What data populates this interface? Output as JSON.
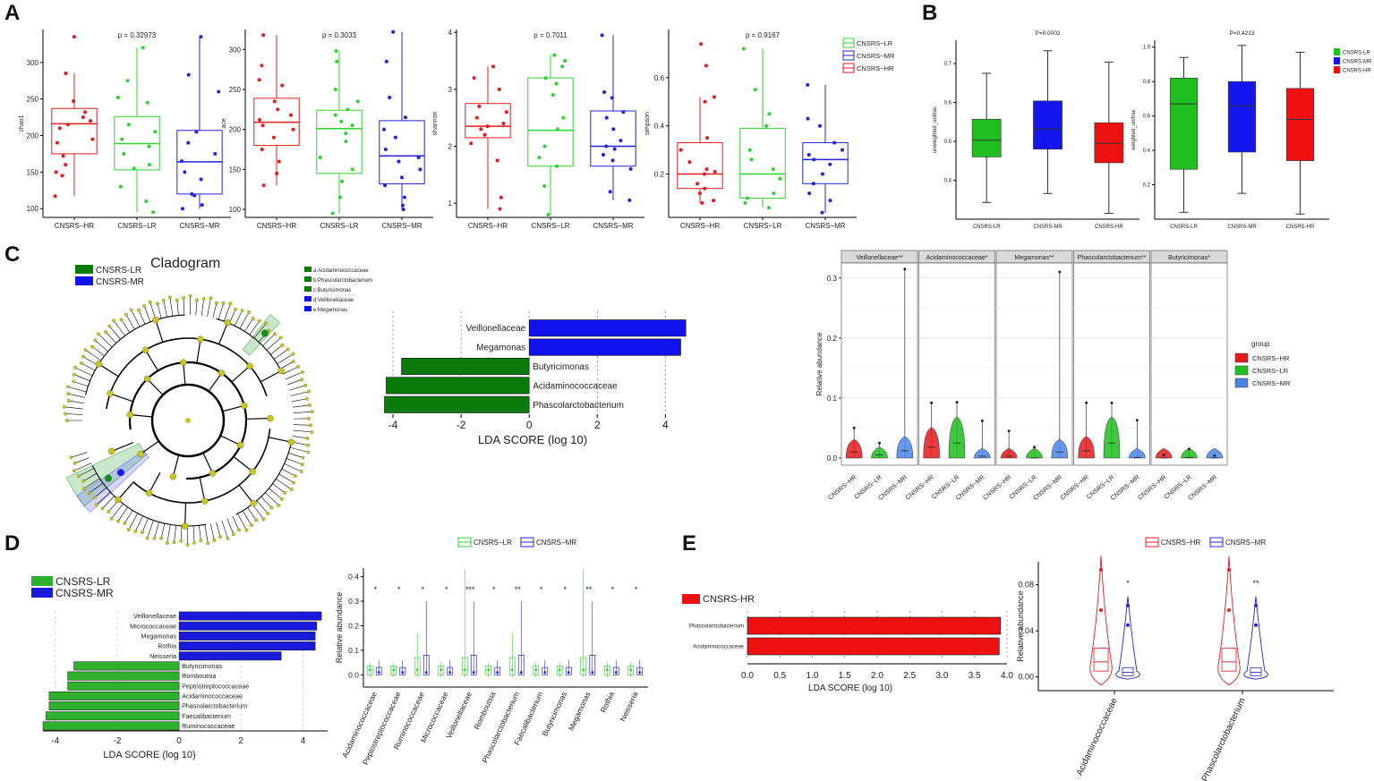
{
  "panel_letters": {
    "A": "A",
    "B": "B",
    "C": "C",
    "D": "D",
    "E": "E"
  },
  "colors": {
    "hr": "#e41a1c",
    "lr": "#2ed12e",
    "mr": "#2222dd",
    "lr_solid": "#1fbf1f",
    "mr_solid": "#1515ee",
    "hr_solid": "#ee1111",
    "lda_green": "#0a7a0a",
    "lda_blue": "#1212ee",
    "lda_green_light": "#2db02d",
    "lda_blue_dark": "#1a1add",
    "yellow_node": "#c8c819"
  },
  "chart_data": [
    {
      "id": "A1",
      "type": "box",
      "title": "p = 0.32973",
      "ylabel": "chao1",
      "ylim": [
        88,
        345
      ],
      "yticks": [
        100,
        150,
        200,
        250,
        300
      ],
      "groups": [
        {
          "name": "CNSRS−HR",
          "color": "#e41a1c",
          "q1": 175,
          "median": 216,
          "q3": 237,
          "wlo": 117,
          "whi": 285,
          "points": [
            117,
            145,
            150,
            160,
            172,
            190,
            195,
            210,
            215,
            220,
            225,
            232,
            247,
            285,
            335
          ]
        },
        {
          "name": "CNSRS−LR",
          "color": "#2ed12e",
          "q1": 153,
          "median": 189,
          "q3": 226,
          "wlo": 95,
          "whi": 320,
          "points": [
            95,
            110,
            130,
            155,
            160,
            175,
            185,
            195,
            205,
            215,
            245,
            252,
            275,
            320
          ]
        },
        {
          "name": "CNSRS−MR",
          "color": "#2222dd",
          "q1": 120,
          "median": 164,
          "q3": 207,
          "wlo": 100,
          "whi": 335,
          "points": [
            100,
            105,
            118,
            120,
            140,
            150,
            165,
            175,
            190,
            205,
            260,
            283,
            335
          ]
        }
      ]
    },
    {
      "id": "A2",
      "type": "box",
      "title": "p = 0.3033",
      "ylabel": "ace",
      "ylim": [
        90,
        325
      ],
      "yticks": [
        100,
        150,
        200,
        250,
        300
      ],
      "groups": [
        {
          "name": "CNSRS−HR",
          "color": "#e41a1c",
          "q1": 180,
          "median": 209,
          "q3": 239,
          "wlo": 130,
          "whi": 318,
          "points": [
            130,
            145,
            160,
            175,
            190,
            200,
            205,
            212,
            218,
            225,
            235,
            255,
            262,
            280,
            318
          ]
        },
        {
          "name": "CNSRS−LR",
          "color": "#2ed12e",
          "q1": 145,
          "median": 201,
          "q3": 224,
          "wlo": 95,
          "whi": 298,
          "points": [
            95,
            115,
            135,
            150,
            165,
            185,
            195,
            205,
            210,
            218,
            225,
            235,
            250,
            285,
            298
          ]
        },
        {
          "name": "CNSRS−MR",
          "color": "#2222dd",
          "q1": 132,
          "median": 167,
          "q3": 211,
          "wlo": 100,
          "whi": 322,
          "points": [
            100,
            105,
            115,
            130,
            140,
            150,
            160,
            165,
            175,
            190,
            200,
            215,
            240,
            285,
            322
          ]
        }
      ]
    },
    {
      "id": "A3",
      "type": "box",
      "title": "p = 0.7011",
      "ylabel": "shannon",
      "ylim": [
        0.75,
        4.05
      ],
      "yticks": [
        1,
        2,
        3,
        4
      ],
      "groups": [
        {
          "name": "CNSRS−HR",
          "color": "#e41a1c",
          "q1": 2.15,
          "median": 2.35,
          "q3": 2.75,
          "wlo": 0.9,
          "whi": 3.4,
          "points": [
            0.9,
            1.1,
            1.75,
            2.05,
            2.2,
            2.3,
            2.35,
            2.4,
            2.5,
            2.6,
            2.7,
            3.0,
            3.2,
            3.4
          ]
        },
        {
          "name": "CNSRS−LR",
          "color": "#2ed12e",
          "q1": 1.65,
          "median": 2.28,
          "q3": 3.2,
          "wlo": 0.8,
          "whi": 3.6,
          "points": [
            0.8,
            1.3,
            1.65,
            1.8,
            2.0,
            2.3,
            2.5,
            2.9,
            3.1,
            3.2,
            3.4,
            3.5,
            3.6
          ]
        },
        {
          "name": "CNSRS−MR",
          "color": "#2222dd",
          "q1": 1.65,
          "median": 2.0,
          "q3": 2.62,
          "wlo": 1.05,
          "whi": 3.95,
          "points": [
            1.05,
            1.2,
            1.6,
            1.75,
            1.85,
            1.95,
            2.0,
            2.1,
            2.3,
            2.5,
            2.6,
            2.85,
            2.95,
            3.95
          ]
        }
      ]
    },
    {
      "id": "A4",
      "type": "box",
      "title": "p = 0.9167",
      "ylabel": "simpson",
      "ylim": [
        0.02,
        0.8
      ],
      "yticks": [
        0.2,
        0.4,
        0.6
      ],
      "groups": [
        {
          "name": "CNSRS−HR",
          "color": "#e41a1c",
          "q1": 0.14,
          "median": 0.2,
          "q3": 0.33,
          "wlo": 0.08,
          "whi": 0.52,
          "points": [
            0.08,
            0.09,
            0.12,
            0.14,
            0.16,
            0.2,
            0.21,
            0.22,
            0.25,
            0.3,
            0.35,
            0.5,
            0.52,
            0.65,
            0.74
          ]
        },
        {
          "name": "CNSRS−LR",
          "color": "#2ed12e",
          "q1": 0.1,
          "median": 0.2,
          "q3": 0.39,
          "wlo": 0.06,
          "whi": 0.72,
          "points": [
            0.06,
            0.08,
            0.1,
            0.12,
            0.18,
            0.22,
            0.26,
            0.3,
            0.4,
            0.45,
            0.55,
            0.72
          ]
        },
        {
          "name": "CNSRS−MR",
          "color": "#2222dd",
          "q1": 0.16,
          "median": 0.26,
          "q3": 0.33,
          "wlo": 0.04,
          "whi": 0.57,
          "points": [
            0.04,
            0.09,
            0.12,
            0.16,
            0.2,
            0.24,
            0.26,
            0.28,
            0.3,
            0.33,
            0.4,
            0.43,
            0.57
          ]
        }
      ]
    },
    {
      "id": "A-legend",
      "type": "legend",
      "entries": [
        {
          "name": "CNSRS−LR",
          "color": "#2ed12e"
        },
        {
          "name": "CNSRS−MR",
          "color": "#2222dd"
        },
        {
          "name": "CNSRS−HR",
          "color": "#e41a1c"
        }
      ]
    },
    {
      "id": "B1",
      "type": "box",
      "title": "P=0.0002",
      "ylabel": "unweighted_unifrac",
      "ylim": [
        0.3,
        0.76
      ],
      "yticks": [
        0.4,
        0.5,
        0.6,
        0.7
      ],
      "groups": [
        {
          "name": "CNSRS-LR",
          "color": "#1fbf1f",
          "q1": 0.46,
          "median": 0.503,
          "q3": 0.557,
          "wlo": 0.343,
          "whi": 0.675
        },
        {
          "name": "CNSRS-MR",
          "color": "#1515ee",
          "q1": 0.48,
          "median": 0.532,
          "q3": 0.604,
          "wlo": 0.366,
          "whi": 0.733
        },
        {
          "name": "CNSRS-HR",
          "color": "#ee1111",
          "q1": 0.445,
          "median": 0.495,
          "q3": 0.548,
          "wlo": 0.315,
          "whi": 0.704
        }
      ]
    },
    {
      "id": "B2",
      "type": "box",
      "title": "P=0.4213",
      "ylabel": "weighted_unifrac",
      "ylim": [
        0.0,
        1.04
      ],
      "yticks": [
        0.2,
        0.4,
        0.6,
        0.8,
        1.0
      ],
      "groups": [
        {
          "name": "CNSRS-LR",
          "color": "#1fbf1f",
          "q1": 0.29,
          "median": 0.67,
          "q3": 0.82,
          "wlo": 0.04,
          "whi": 0.94
        },
        {
          "name": "CNSRS-MR",
          "color": "#1515ee",
          "q1": 0.39,
          "median": 0.66,
          "q3": 0.8,
          "wlo": 0.15,
          "whi": 1.01
        },
        {
          "name": "CNSRS-HR",
          "color": "#ee1111",
          "q1": 0.34,
          "median": 0.58,
          "q3": 0.76,
          "wlo": 0.03,
          "whi": 0.97
        }
      ]
    },
    {
      "id": "B-legend",
      "type": "legend",
      "entries": [
        {
          "name": "CNSRS-LR",
          "color": "#1fbf1f"
        },
        {
          "name": "CNSRS-MR",
          "color": "#1515ee"
        },
        {
          "name": "CNSRS-HR",
          "color": "#ee1111"
        }
      ]
    },
    {
      "id": "C-lda",
      "type": "bar",
      "orientation": "horizontal",
      "xlabel": "LDA SCORE (log 10)",
      "xlim": [
        -4.5,
        4.7
      ],
      "xticks": [
        -4,
        -2,
        0,
        2,
        4
      ],
      "categories": [
        "Veillonellaceae",
        "Megamonas",
        "Butyricimonas",
        "Acidaminococcaceae",
        "Phascolarctobacterium"
      ],
      "values": [
        4.6,
        4.45,
        -3.75,
        -4.2,
        -4.25
      ],
      "groups": [
        "CNSRS-MR",
        "CNSRS-MR",
        "CNSRS-LR",
        "CNSRS-LR",
        "CNSRS-LR"
      ]
    },
    {
      "id": "C-violin",
      "type": "violin",
      "ylabel": "Relative abundance",
      "ylim": [
        -0.012,
        0.325
      ],
      "yticks": [
        0.0,
        0.1,
        0.2,
        0.3
      ],
      "facets": [
        "Veillonellaceae**",
        "Acidaminococcaceae*",
        "Megamonas**",
        "Phascolarctobacterium**",
        "Butyricimonas*"
      ],
      "groups": [
        "CNSRS−HR",
        "CNSRS−LR",
        "CNSRS−MR"
      ],
      "medians": [
        [
          0.01,
          0.005,
          0.012
        ],
        [
          0.018,
          0.025,
          0.003
        ],
        [
          0.003,
          0.0,
          0.01
        ],
        [
          0.012,
          0.025,
          0.001
        ],
        [
          0.0,
          0.001,
          0.0
        ]
      ],
      "maxima": [
        [
          0.05,
          0.025,
          0.315
        ],
        [
          0.092,
          0.093,
          0.062
        ],
        [
          0.045,
          0.018,
          0.31
        ],
        [
          0.092,
          0.092,
          0.063
        ],
        [
          0.005,
          0.015,
          0.004
        ]
      ],
      "legend_title": "group"
    },
    {
      "id": "D-lda",
      "type": "bar",
      "orientation": "horizontal",
      "xlabel": "LDA SCORE (log 10)",
      "xlim": [
        -4.4,
        4.8
      ],
      "xticks": [
        -4,
        -2,
        0,
        2,
        4
      ],
      "categories": [
        "Veillonellaceae",
        "Micrococcaceae",
        "Megamonas",
        "Rothia",
        "Neisseria",
        "Butyricimonas",
        "Romboutsia",
        "Peptostreptococcaceae",
        "Acidaminococcaceae",
        "Phascolarctobacterium",
        "Faecalibacterium",
        "Ruminococcaceae"
      ],
      "values": [
        4.6,
        4.45,
        4.4,
        4.4,
        3.3,
        -3.4,
        -3.6,
        -3.6,
        -4.2,
        -4.2,
        -4.3,
        -4.4
      ],
      "groups": [
        "CNSRS-MR",
        "CNSRS-MR",
        "CNSRS-MR",
        "CNSRS-MR",
        "CNSRS-MR",
        "CNSRS-LR",
        "CNSRS-LR",
        "CNSRS-LR",
        "CNSRS-LR",
        "CNSRS-LR",
        "CNSRS-LR",
        "CNSRS-LR"
      ]
    },
    {
      "id": "D-box",
      "type": "box",
      "ylabel": "Relative abundance",
      "ylim": [
        -0.05,
        0.435
      ],
      "yticks": [
        0.0,
        0.1,
        0.2,
        0.3,
        0.4
      ],
      "categories": [
        "Acidaminococcaceae",
        "Peptostreptococcaceae",
        "Ruminococcaceae",
        "Micrococcaceae",
        "Veillonellaceae",
        "Romboutsia",
        "Phascolarctobacterium",
        "Faecalibacterium",
        "Butyricimonas",
        "Megamonas",
        "Rothia",
        "Neisseria"
      ],
      "significance": [
        "*",
        "*",
        "*",
        "*",
        "***",
        "*",
        "**",
        "*",
        "*",
        "**",
        "*",
        "*"
      ],
      "legend": [
        {
          "name": "CNSRS−LR",
          "color": "#2ed12e"
        },
        {
          "name": "CNSRS−MR",
          "color": "#2222dd"
        }
      ]
    },
    {
      "id": "E-lda",
      "type": "bar",
      "orientation": "horizontal",
      "xlabel": "LDA SCORE (log 10)",
      "xlim": [
        0,
        4.0
      ],
      "xticks": [
        0.0,
        0.5,
        1.0,
        1.5,
        2.0,
        2.5,
        3.0,
        3.5,
        4.0
      ],
      "categories": [
        "Phascolarctobacterium",
        "Acidaminococcaceae"
      ],
      "values": [
        3.9,
        3.88
      ],
      "legend": "CNSRS-HR"
    },
    {
      "id": "E-violin",
      "type": "violin",
      "ylabel": "Relative abundance",
      "ylim": [
        -0.012,
        0.1
      ],
      "yticks": [
        0.0,
        0.04,
        0.08
      ],
      "categories": [
        "Acidaminococcaceae",
        "Phascolarctobacterium"
      ],
      "significance": [
        "*",
        "**"
      ],
      "legend": [
        {
          "name": "CNSRS−HR",
          "color": "#e41a1c"
        },
        {
          "name": "CNSRS−MR",
          "color": "#2222dd"
        }
      ]
    },
    {
      "id": "C-cladogram",
      "type": "cladogram",
      "title": "Cladogram",
      "legend": [
        {
          "name": "CNSRS-LR",
          "color": "#0a7a0a"
        },
        {
          "name": "CNSRS-MR",
          "color": "#1212ee"
        }
      ],
      "taxa": [
        {
          "label": "a:Acidaminococcaceae",
          "color": "#0a7a0a"
        },
        {
          "label": "b:Phascolarctobacterium",
          "color": "#0a7a0a"
        },
        {
          "label": "c:Butyricimonas",
          "color": "#0a7a0a"
        },
        {
          "label": "d:Veillonellaceae",
          "color": "#1212ee"
        },
        {
          "label": "e:Megamonas",
          "color": "#1212ee"
        }
      ]
    }
  ]
}
